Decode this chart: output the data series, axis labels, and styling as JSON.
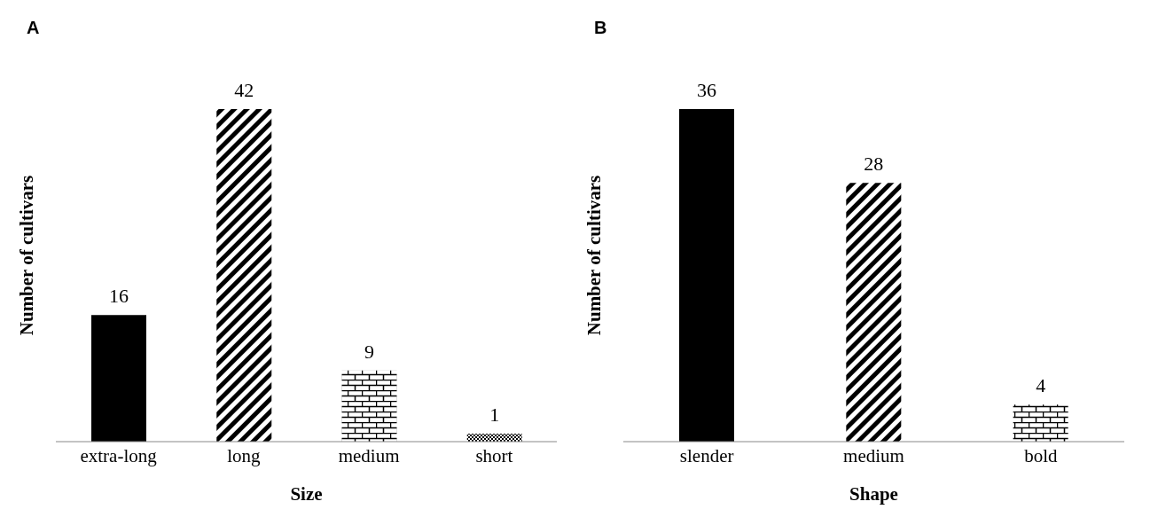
{
  "chart_data": [
    {
      "type": "bar",
      "title": "A",
      "xlabel": "Size",
      "ylabel": "Number of cultivars",
      "categories": [
        "extra-long",
        "long",
        "medium",
        "short"
      ],
      "values": [
        16,
        42,
        9,
        1
      ],
      "colors": [
        "#000000",
        "#000000",
        "#000000",
        "#000000"
      ],
      "data_labels": true,
      "grid": false,
      "legend": false
    },
    {
      "type": "bar",
      "title": "B",
      "xlabel": "Shape",
      "ylabel": "Number of cultivars",
      "categories": [
        "slender",
        "medium",
        "bold"
      ],
      "values": [
        36,
        28,
        4
      ],
      "colors": [
        "#000000",
        "#000000",
        "#000000"
      ],
      "data_labels": true,
      "grid": false,
      "legend": false
    }
  ]
}
